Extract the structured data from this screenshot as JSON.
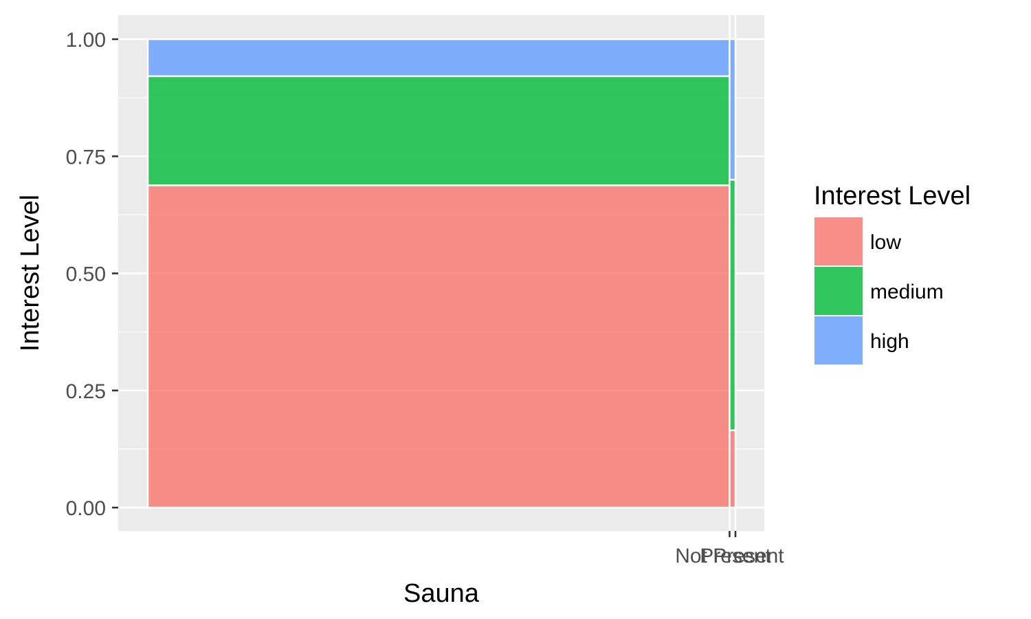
{
  "chart_data": {
    "type": "bar",
    "subtype": "stacked-proportion (mosaic, variable width)",
    "title": "",
    "xlabel": "Sauna",
    "ylabel": "Interest Level",
    "categories": [
      "Not Present",
      "Present"
    ],
    "category_widths": [
      0.99,
      0.01
    ],
    "ylim": [
      0,
      1
    ],
    "yticks": [
      0.0,
      0.25,
      0.5,
      0.75,
      1.0
    ],
    "ytick_labels": [
      "0.00",
      "0.25",
      "0.50",
      "0.75",
      "1.00"
    ],
    "series": [
      {
        "name": "low",
        "color": "#F8766D",
        "values": [
          0.688,
          0.165
        ]
      },
      {
        "name": "medium",
        "color": "#00BA38",
        "values": [
          0.233,
          0.535
        ]
      },
      {
        "name": "high",
        "color": "#619CFF",
        "values": [
          0.079,
          0.3
        ]
      }
    ],
    "legend": {
      "title": "Interest Level",
      "position": "right",
      "entries": [
        "low",
        "medium",
        "high"
      ]
    },
    "grid": true,
    "panel_background": "#EBEBEB",
    "bar_alpha": 0.8
  }
}
